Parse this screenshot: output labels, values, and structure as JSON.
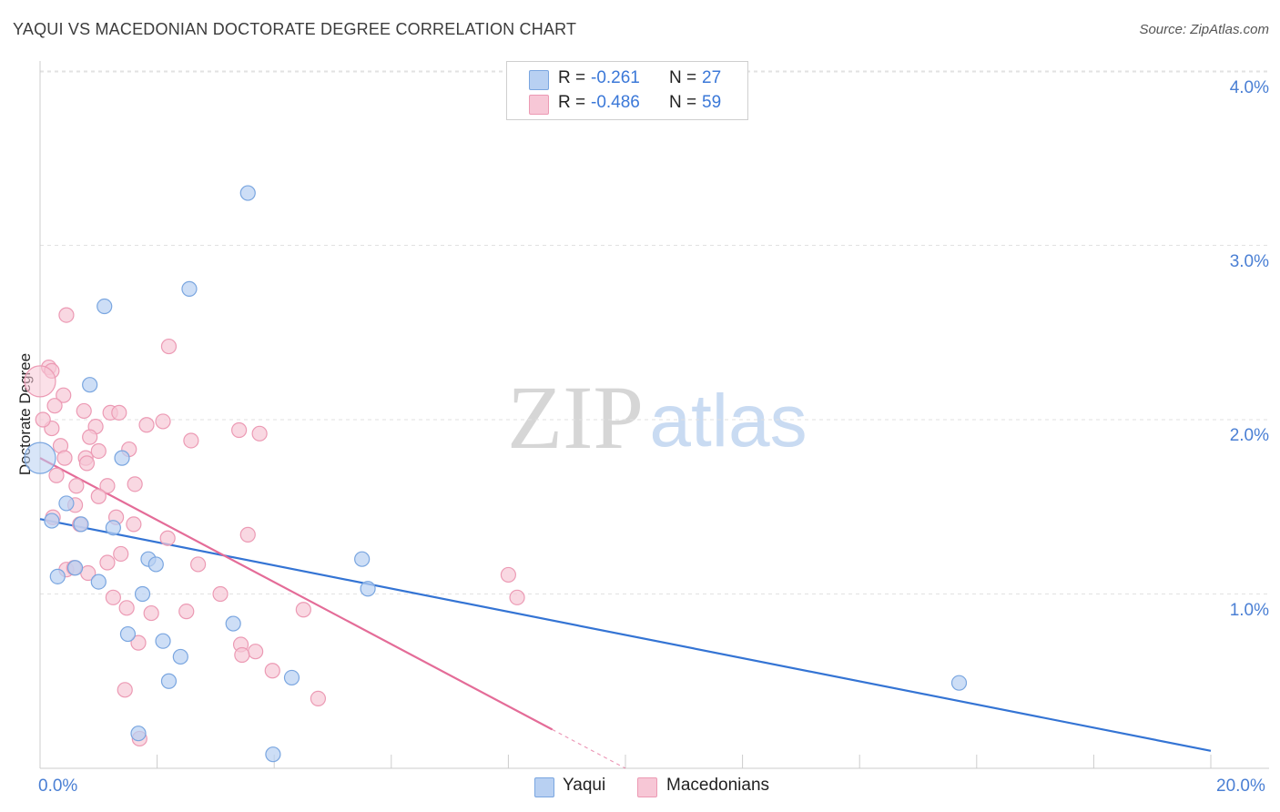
{
  "header": {
    "title": "YAQUI VS MACEDONIAN DOCTORATE DEGREE CORRELATION CHART",
    "source": "Source: ZipAtlas.com"
  },
  "watermark": {
    "zip": "ZIP",
    "atlas": "atlas"
  },
  "legend": {
    "yaqui": {
      "r_label": "R =",
      "r_value": "-0.261",
      "n_label": "N =",
      "n_value": "27"
    },
    "macedonians": {
      "r_label": "R =",
      "r_value": "-0.486",
      "n_label": "N =",
      "n_value": "59"
    }
  },
  "colors": {
    "yaqui_fill": "#b8d0f2",
    "yaqui_stroke": "#7aa6e0",
    "yaqui_line": "#3474d4",
    "mac_fill": "#f7c7d6",
    "mac_stroke": "#ec9ab4",
    "mac_line": "#e46c98",
    "tick_text": "#4a7fd4"
  },
  "chart_data": {
    "type": "scatter",
    "title": "YAQUI VS MACEDONIAN DOCTORATE DEGREE CORRELATION CHART",
    "xlabel": "",
    "ylabel": "Doctorate Degree",
    "xlim": [
      0,
      20
    ],
    "ylim": [
      0,
      4.2
    ],
    "x_tick_labels": [
      "0.0%",
      "20.0%"
    ],
    "y_ticks": [
      1.0,
      2.0,
      3.0,
      4.0
    ],
    "y_tick_labels": [
      "1.0%",
      "2.0%",
      "3.0%",
      "4.0%"
    ],
    "grid": true,
    "legend_position": "bottom-center",
    "series": [
      {
        "name": "Yaqui",
        "points": [
          [
            3.55,
            3.3
          ],
          [
            2.55,
            2.75
          ],
          [
            1.1,
            2.65
          ],
          [
            0.85,
            2.2
          ],
          [
            1.4,
            1.78
          ],
          [
            0.0,
            1.78
          ],
          [
            0.2,
            1.42
          ],
          [
            0.45,
            1.52
          ],
          [
            0.7,
            1.4
          ],
          [
            1.25,
            1.38
          ],
          [
            1.85,
            1.2
          ],
          [
            1.98,
            1.17
          ],
          [
            0.6,
            1.15
          ],
          [
            0.3,
            1.1
          ],
          [
            1.0,
            1.07
          ],
          [
            1.75,
            1.0
          ],
          [
            5.5,
            1.2
          ],
          [
            5.6,
            1.03
          ],
          [
            3.3,
            0.83
          ],
          [
            1.5,
            0.77
          ],
          [
            2.1,
            0.73
          ],
          [
            2.4,
            0.64
          ],
          [
            2.2,
            0.5
          ],
          [
            4.3,
            0.52
          ],
          [
            15.7,
            0.49
          ],
          [
            1.68,
            0.2
          ],
          [
            3.98,
            0.08
          ]
        ],
        "trend": {
          "x": [
            0,
            20
          ],
          "y": [
            1.43,
            0.1
          ]
        }
      },
      {
        "name": "Macedonians",
        "points": [
          [
            0.45,
            2.6
          ],
          [
            2.2,
            2.42
          ],
          [
            0.15,
            2.3
          ],
          [
            0.2,
            2.28
          ],
          [
            0.4,
            2.14
          ],
          [
            0.0,
            2.22
          ],
          [
            0.25,
            2.08
          ],
          [
            0.75,
            2.05
          ],
          [
            1.2,
            2.04
          ],
          [
            1.35,
            2.04
          ],
          [
            2.1,
            1.99
          ],
          [
            1.82,
            1.97
          ],
          [
            0.2,
            1.95
          ],
          [
            0.95,
            1.96
          ],
          [
            3.4,
            1.94
          ],
          [
            3.75,
            1.92
          ],
          [
            0.85,
            1.9
          ],
          [
            2.58,
            1.88
          ],
          [
            0.35,
            1.85
          ],
          [
            1.0,
            1.82
          ],
          [
            1.52,
            1.83
          ],
          [
            0.78,
            1.78
          ],
          [
            0.42,
            1.78
          ],
          [
            0.8,
            1.75
          ],
          [
            0.28,
            1.68
          ],
          [
            1.62,
            1.63
          ],
          [
            1.15,
            1.62
          ],
          [
            0.62,
            1.62
          ],
          [
            1.0,
            1.56
          ],
          [
            0.6,
            1.51
          ],
          [
            0.22,
            1.44
          ],
          [
            1.3,
            1.44
          ],
          [
            0.68,
            1.4
          ],
          [
            1.6,
            1.4
          ],
          [
            3.55,
            1.34
          ],
          [
            2.18,
            1.32
          ],
          [
            1.38,
            1.23
          ],
          [
            1.15,
            1.18
          ],
          [
            0.45,
            1.14
          ],
          [
            0.58,
            1.15
          ],
          [
            2.7,
            1.17
          ],
          [
            0.82,
            1.12
          ],
          [
            8.0,
            1.11
          ],
          [
            3.08,
            1.0
          ],
          [
            1.25,
            0.98
          ],
          [
            8.15,
            0.98
          ],
          [
            1.48,
            0.92
          ],
          [
            2.5,
            0.9
          ],
          [
            4.5,
            0.91
          ],
          [
            1.9,
            0.89
          ],
          [
            1.68,
            0.72
          ],
          [
            3.43,
            0.71
          ],
          [
            3.68,
            0.67
          ],
          [
            3.45,
            0.65
          ],
          [
            3.97,
            0.56
          ],
          [
            1.45,
            0.45
          ],
          [
            4.75,
            0.4
          ],
          [
            1.7,
            0.17
          ],
          [
            0.05,
            2.0
          ]
        ],
        "trend": {
          "x": [
            0,
            10.0
          ],
          "y": [
            1.78,
            0.0
          ],
          "solid_until_x": 10.0
        }
      }
    ]
  }
}
